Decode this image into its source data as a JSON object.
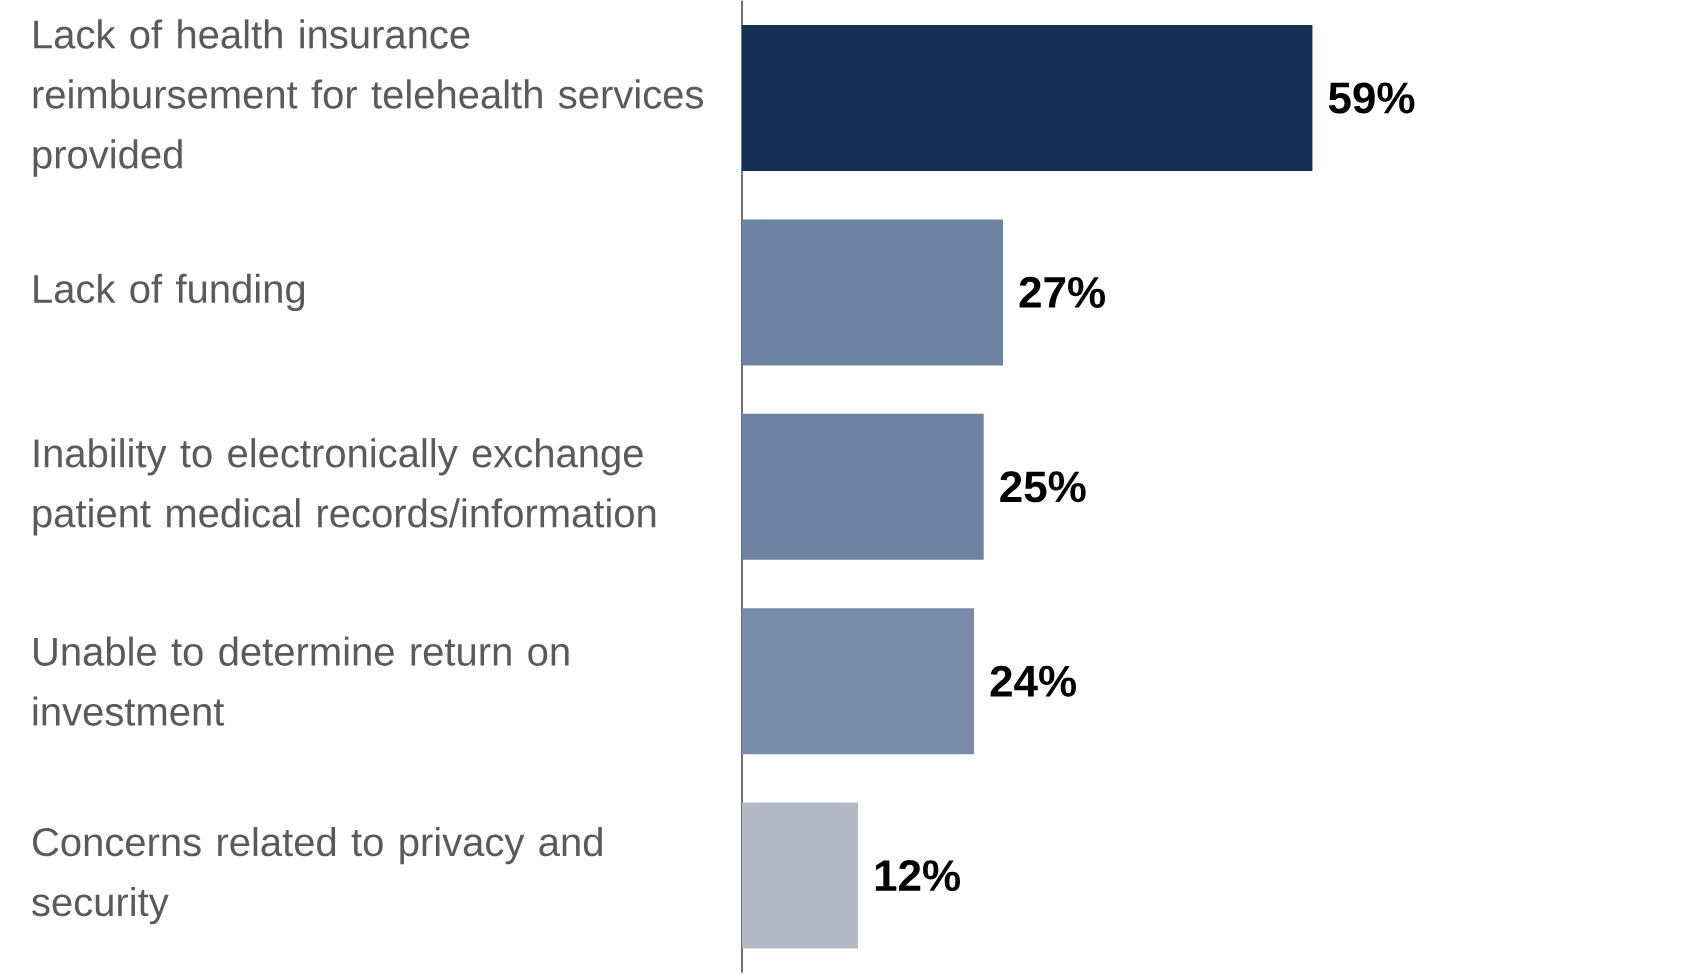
{
  "chart_data": {
    "type": "bar",
    "orientation": "horizontal",
    "categories": [
      "Lack of health insurance reimbursement for telehealth services provided",
      "Lack of funding",
      "Inability to electronically exchange patient medical records/information",
      "Unable to determine return on investment",
      "Concerns related to privacy and security"
    ],
    "values": [
      59,
      27,
      25,
      24,
      12
    ],
    "value_labels": [
      "59%",
      "27%",
      "25%",
      "24%",
      "12%"
    ],
    "colors": [
      "#162f55",
      "#6e82a1",
      "#6e82a1",
      "#7a8ba8",
      "#b3b9c5"
    ],
    "tick_labels": "y"
  }
}
